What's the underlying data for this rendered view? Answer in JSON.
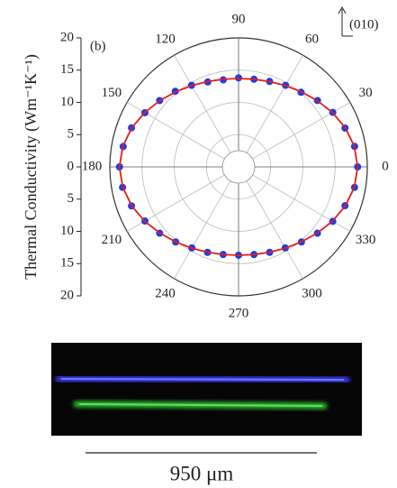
{
  "chart_data": {
    "type": "polar",
    "panel_label": "(b)",
    "y_label": "Thermal Conductivity (Wm⁻¹K⁻¹)",
    "annotation": "(010)",
    "ylim": [
      -20,
      20
    ],
    "yticks": [
      {
        "value": -20,
        "label": "20"
      },
      {
        "value": -15,
        "label": "15"
      },
      {
        "value": -10,
        "label": "10"
      },
      {
        "value": -5,
        "label": "5"
      },
      0,
      5,
      10,
      15,
      20
    ],
    "theta": [
      0,
      10,
      20,
      30,
      40,
      50,
      60,
      70,
      80,
      90,
      100,
      110,
      120,
      130,
      140,
      150,
      160,
      170,
      180,
      190,
      200,
      210,
      220,
      230,
      240,
      250,
      260,
      270,
      280,
      290,
      300,
      310,
      320,
      330,
      340,
      350
    ],
    "theta_ticks": [
      0,
      30,
      60,
      90,
      120,
      150,
      180,
      210,
      240,
      270,
      300,
      330
    ],
    "grid": true,
    "series": [
      {
        "color": "#1a3de8",
        "marker": "circle",
        "values": [
          18.5,
          18.3,
          17.6,
          16.9,
          16.0,
          15.1,
          14.6,
          14.1,
          13.8,
          13.8,
          13.7,
          14.0,
          14.6,
          15.3,
          16.0,
          16.8,
          17.7,
          18.2,
          18.5,
          18.3,
          17.7,
          16.8,
          16.0,
          15.2,
          14.5,
          14.1,
          13.8,
          13.7,
          13.8,
          14.1,
          14.5,
          15.2,
          16.0,
          16.9,
          17.6,
          18.3
        ]
      },
      {
        "color": "#e01f1f",
        "marker": "line",
        "values": [
          18.5,
          18.27,
          17.67,
          16.85,
          15.98,
          15.19,
          14.55,
          14.08,
          13.8,
          13.7,
          13.8,
          14.08,
          14.55,
          15.19,
          15.98,
          16.85,
          17.67,
          18.27,
          18.5,
          18.27,
          17.67,
          16.85,
          15.98,
          15.19,
          14.55,
          14.08,
          13.8,
          13.7,
          13.8,
          14.08,
          14.55,
          15.19,
          15.98,
          16.85,
          17.67,
          18.27
        ]
      }
    ]
  },
  "image": {
    "scale_bar_label": "950 μm"
  }
}
